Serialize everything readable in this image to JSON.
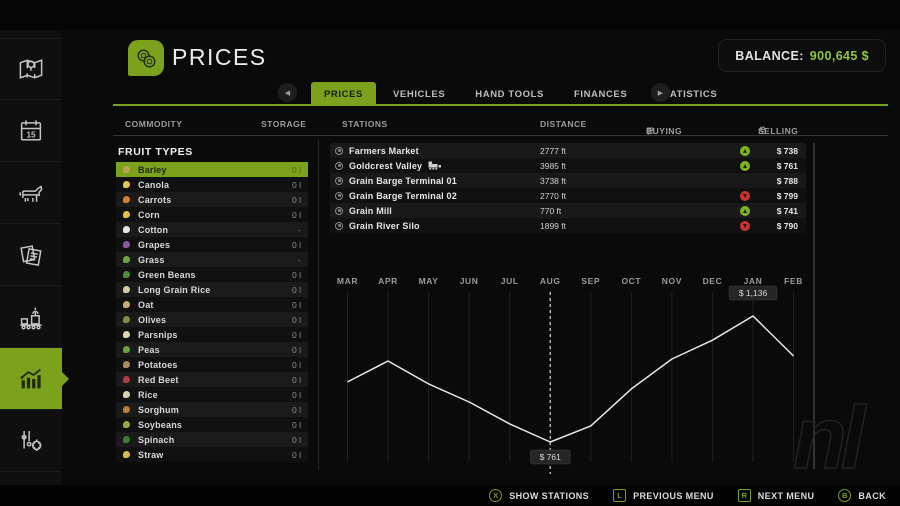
{
  "colors": {
    "accent": "#7ba11d",
    "balance_green": "#8fc641",
    "trend_up": "#7fb31f",
    "trend_down": "#c9352b"
  },
  "header": {
    "title": "PRICES",
    "balance_label": "BALANCE:",
    "balance_value": "900,645 $"
  },
  "tabs": [
    {
      "label": "PRICES",
      "active": true
    },
    {
      "label": "VEHICLES",
      "active": false
    },
    {
      "label": "HAND TOOLS",
      "active": false
    },
    {
      "label": "FINANCES",
      "active": false
    },
    {
      "label": "STATISTICS",
      "active": false
    }
  ],
  "columns": {
    "commodity": "COMMODITY",
    "storage": "STORAGE",
    "stations": "STATIONS",
    "distance": "DISTANCE",
    "buying": "BUYING",
    "selling": "SELLING"
  },
  "fruit_panel": {
    "title": "FRUIT TYPES",
    "items": [
      {
        "name": "Barley",
        "storage": "0 l",
        "selected": true,
        "color": "#c2a14d"
      },
      {
        "name": "Canola",
        "storage": "0 l",
        "selected": false,
        "color": "#e0c94a"
      },
      {
        "name": "Carrots",
        "storage": "0 l",
        "selected": false,
        "color": "#dd7b2d"
      },
      {
        "name": "Corn",
        "storage": "0 l",
        "selected": false,
        "color": "#e2c23c"
      },
      {
        "name": "Cotton",
        "storage": "-",
        "selected": false,
        "color": "#e4e4e4"
      },
      {
        "name": "Grapes",
        "storage": "0 l",
        "selected": false,
        "color": "#8a5a9c"
      },
      {
        "name": "Grass",
        "storage": "-",
        "selected": false,
        "color": "#6da63f"
      },
      {
        "name": "Green Beans",
        "storage": "0 l",
        "selected": false,
        "color": "#4e8c3a"
      },
      {
        "name": "Long Grain Rice",
        "storage": "0 l",
        "selected": false,
        "color": "#d6cba2"
      },
      {
        "name": "Oat",
        "storage": "0 l",
        "selected": false,
        "color": "#c6ac6e"
      },
      {
        "name": "Olives",
        "storage": "0 l",
        "selected": false,
        "color": "#7c8f3d"
      },
      {
        "name": "Parsnips",
        "storage": "0 l",
        "selected": false,
        "color": "#e0d5ae"
      },
      {
        "name": "Peas",
        "storage": "0 l",
        "selected": false,
        "color": "#69a13e"
      },
      {
        "name": "Potatoes",
        "storage": "0 l",
        "selected": false,
        "color": "#ad8a5c"
      },
      {
        "name": "Red Beet",
        "storage": "0 l",
        "selected": false,
        "color": "#b13a4a"
      },
      {
        "name": "Rice",
        "storage": "0 l",
        "selected": false,
        "color": "#d9d2b4"
      },
      {
        "name": "Sorghum",
        "storage": "0 l",
        "selected": false,
        "color": "#bd7a3a"
      },
      {
        "name": "Soybeans",
        "storage": "0 l",
        "selected": false,
        "color": "#9aa63e"
      },
      {
        "name": "Spinach",
        "storage": "0 l",
        "selected": false,
        "color": "#3e7a36"
      },
      {
        "name": "Straw",
        "storage": "0 l",
        "selected": false,
        "color": "#d4bd4a"
      }
    ]
  },
  "stations": [
    {
      "name": "Farmers Market",
      "train": false,
      "distance": "2777 ft",
      "trend": "up",
      "price": "$ 738"
    },
    {
      "name": "Goldcrest Valley",
      "train": true,
      "distance": "3985 ft",
      "trend": "up",
      "price": "$ 761"
    },
    {
      "name": "Grain Barge Terminal 01",
      "train": false,
      "distance": "3738 ft",
      "trend": "none",
      "price": "$ 788"
    },
    {
      "name": "Grain Barge Terminal 02",
      "train": false,
      "distance": "2770 ft",
      "trend": "down",
      "price": "$ 799"
    },
    {
      "name": "Grain Mill",
      "train": false,
      "distance": "770 ft",
      "trend": "up",
      "price": "$ 741"
    },
    {
      "name": "Grain River Silo",
      "train": false,
      "distance": "1899 ft",
      "trend": "down",
      "price": "$ 790"
    }
  ],
  "chart_data": {
    "type": "line",
    "x": [
      "MAR",
      "APR",
      "MAY",
      "JUN",
      "JUL",
      "AUG",
      "SEP",
      "OCT",
      "NOV",
      "DEC",
      "JAN",
      "FEB"
    ],
    "values": [
      940,
      1002,
      934,
      880,
      815,
      761,
      809,
      919,
      1008,
      1064,
      1136,
      1017
    ],
    "ylim": [
      700,
      1200
    ],
    "grid": "vertical",
    "legend": "none",
    "current_month": "AUG",
    "annotations": [
      {
        "x": "AUG",
        "label": "$ 761",
        "position": "below"
      },
      {
        "x": "JAN",
        "label": "$ 1,136",
        "position": "above"
      }
    ]
  },
  "sidebar": {
    "items": [
      {
        "icon": "map-icon",
        "active": false
      },
      {
        "icon": "calendar-icon",
        "active": false,
        "badge": "15"
      },
      {
        "icon": "animals-icon",
        "active": false
      },
      {
        "icon": "contracts-icon",
        "active": false
      },
      {
        "icon": "production-icon",
        "active": false
      },
      {
        "icon": "statistics-icon",
        "active": true
      },
      {
        "icon": "settings-icon",
        "active": false
      }
    ]
  },
  "hints": [
    {
      "button": "X",
      "shape": "circle",
      "label": "SHOW STATIONS"
    },
    {
      "button": "L",
      "shape": "square",
      "label": "PREVIOUS MENU"
    },
    {
      "button": "R",
      "shape": "square",
      "label": "NEXT MENU"
    },
    {
      "button": "B",
      "shape": "circle",
      "label": "BACK"
    }
  ],
  "watermark": "nl"
}
